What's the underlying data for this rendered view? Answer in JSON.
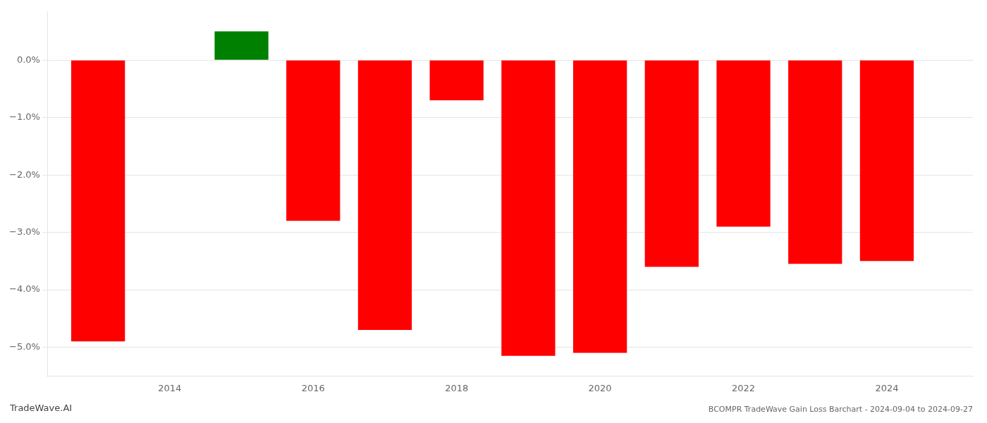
{
  "chart_data": {
    "type": "bar",
    "title": "BCOMPR TradeWave Gain Loss Barchart - 2024-09-04 to 2024-09-27",
    "annotations": [
      "TradeWave.AI"
    ],
    "x": [
      2013,
      2015,
      2016,
      2017,
      2018,
      2019,
      2020,
      2021,
      2022,
      2023,
      2024
    ],
    "values": [
      -4.9,
      0.5,
      -2.8,
      -4.7,
      -0.7,
      -5.15,
      -5.1,
      -3.6,
      -2.9,
      -3.55,
      -3.5
    ],
    "colors": [
      "#ff0000",
      "#008000",
      "#ff0000",
      "#ff0000",
      "#ff0000",
      "#ff0000",
      "#ff0000",
      "#ff0000",
      "#ff0000",
      "#ff0000",
      "#ff0000"
    ],
    "xlim": [
      2012.3,
      2025.2
    ],
    "xticks": [
      2014,
      2016,
      2018,
      2020,
      2022,
      2024
    ],
    "ylim": [
      -5.5,
      0.85
    ],
    "yticks": [
      {
        "value": -5,
        "label": "−5.0%"
      },
      {
        "value": -4,
        "label": "−4.0%"
      },
      {
        "value": -3,
        "label": "−3.0%"
      },
      {
        "value": -2,
        "label": "−2.0%"
      },
      {
        "value": -1,
        "label": "−1.0%"
      },
      {
        "value": 0,
        "label": "0.0%"
      }
    ],
    "grid": "y"
  }
}
